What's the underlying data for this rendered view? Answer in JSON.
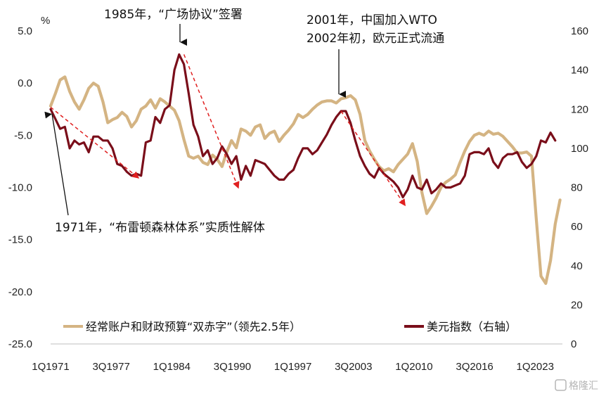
{
  "chart_data": {
    "type": "line",
    "title": "",
    "y_left_unit": "%",
    "y_left_range": [
      -25,
      5
    ],
    "y_left_ticks": [
      "5.0",
      "0.0",
      "-5.0",
      "-10.0",
      "-15.0",
      "-20.0",
      "-25.0"
    ],
    "y_right_range": [
      0,
      160
    ],
    "y_right_ticks": [
      "160",
      "140",
      "120",
      "100",
      "80",
      "60",
      "40",
      "20",
      "0"
    ],
    "x_range": [
      1971.0,
      2024.75
    ],
    "x_tick_labels": [
      "1Q1971",
      "3Q1977",
      "1Q1984",
      "3Q1990",
      "1Q1997",
      "3Q2003",
      "1Q2010",
      "3Q2016",
      "1Q2023"
    ],
    "series": [
      {
        "name": "经常账户和财政预算“双赤字”（领先2.5年）",
        "axis": "left",
        "color": "#D4B483",
        "x": [
          1971.0,
          1971.5,
          1972.0,
          1972.5,
          1973.0,
          1973.5,
          1974.0,
          1974.5,
          1975.0,
          1975.5,
          1976.0,
          1976.5,
          1977.0,
          1977.5,
          1978.0,
          1978.5,
          1979.0,
          1979.5,
          1980.0,
          1980.5,
          1981.0,
          1981.5,
          1982.0,
          1982.5,
          1983.0,
          1983.5,
          1984.0,
          1984.5,
          1985.0,
          1985.5,
          1986.0,
          1986.5,
          1987.0,
          1987.5,
          1988.0,
          1988.5,
          1989.0,
          1989.5,
          1990.0,
          1990.5,
          1991.0,
          1991.5,
          1992.0,
          1992.5,
          1993.0,
          1993.5,
          1994.0,
          1994.5,
          1995.0,
          1995.5,
          1996.0,
          1996.5,
          1997.0,
          1997.5,
          1998.0,
          1998.5,
          1999.0,
          1999.5,
          2000.0,
          2000.5,
          2001.0,
          2001.5,
          2002.0,
          2002.5,
          2003.0,
          2003.5,
          2004.0,
          2004.5,
          2005.0,
          2005.5,
          2006.0,
          2006.5,
          2007.0,
          2007.5,
          2008.0,
          2008.5,
          2009.0,
          2009.5,
          2010.0,
          2010.5,
          2011.0,
          2011.5,
          2012.0,
          2012.5,
          2013.0,
          2013.5,
          2014.0,
          2014.5,
          2015.0,
          2015.5,
          2016.0,
          2016.5,
          2017.0,
          2017.5,
          2018.0,
          2018.5,
          2019.0,
          2019.5,
          2020.0,
          2020.5,
          2021.0,
          2021.5,
          2022.0,
          2022.5,
          2023.0,
          2023.5,
          2024.0,
          2024.5
        ],
        "values": [
          -2.2,
          -1.0,
          0.3,
          0.6,
          -0.8,
          -1.8,
          -2.5,
          -1.6,
          -0.5,
          0.0,
          -0.3,
          -1.8,
          -3.8,
          -3.5,
          -3.3,
          -2.8,
          -3.2,
          -4.2,
          -3.6,
          -2.5,
          -2.2,
          -1.6,
          -2.4,
          -1.5,
          -1.8,
          -2.2,
          -2.6,
          -3.6,
          -5.4,
          -7.0,
          -7.2,
          -7.0,
          -7.6,
          -7.8,
          -6.9,
          -7.3,
          -8.0,
          -6.6,
          -5.5,
          -6.2,
          -4.4,
          -4.6,
          -5.0,
          -4.2,
          -4.0,
          -5.3,
          -4.8,
          -4.6,
          -5.6,
          -5.0,
          -4.5,
          -3.9,
          -3.0,
          -3.3,
          -3.0,
          -2.5,
          -2.1,
          -1.8,
          -1.7,
          -1.7,
          -1.9,
          -1.5,
          -1.4,
          -1.2,
          -1.6,
          -3.0,
          -5.5,
          -6.5,
          -7.3,
          -8.0,
          -8.4,
          -8.2,
          -8.5,
          -7.8,
          -7.3,
          -6.8,
          -5.8,
          -7.5,
          -10.5,
          -12.5,
          -11.8,
          -11.0,
          -10.0,
          -9.5,
          -9.2,
          -8.8,
          -7.6,
          -6.5,
          -5.6,
          -5.0,
          -4.8,
          -5.0,
          -4.6,
          -4.9,
          -4.8,
          -5.1,
          -5.6,
          -6.1,
          -6.7,
          -6.7,
          -6.6,
          -7.0,
          -13.0,
          -18.5,
          -19.2,
          -17.0,
          -13.5,
          -11.2
        ]
      },
      {
        "name": "美元指数（右轴）",
        "axis": "right",
        "color": "#7A0E1A",
        "x": [
          1971.0,
          1971.5,
          1972.0,
          1972.5,
          1973.0,
          1973.5,
          1974.0,
          1974.5,
          1975.0,
          1975.5,
          1976.0,
          1976.5,
          1977.0,
          1977.5,
          1978.0,
          1978.5,
          1979.0,
          1979.5,
          1980.0,
          1980.5,
          1981.0,
          1981.5,
          1982.0,
          1982.5,
          1983.0,
          1983.5,
          1984.0,
          1984.5,
          1985.0,
          1985.5,
          1986.0,
          1986.5,
          1987.0,
          1987.5,
          1988.0,
          1988.5,
          1989.0,
          1989.5,
          1990.0,
          1990.5,
          1991.0,
          1991.5,
          1992.0,
          1992.5,
          1993.0,
          1993.5,
          1994.0,
          1994.5,
          1995.0,
          1995.5,
          1996.0,
          1996.5,
          1997.0,
          1997.5,
          1998.0,
          1998.5,
          1999.0,
          1999.5,
          2000.0,
          2000.5,
          2001.0,
          2001.5,
          2002.0,
          2002.5,
          2003.0,
          2003.5,
          2004.0,
          2004.5,
          2005.0,
          2005.5,
          2006.0,
          2006.5,
          2007.0,
          2007.5,
          2008.0,
          2008.5,
          2009.0,
          2009.5,
          2010.0,
          2010.5,
          2011.0,
          2011.5,
          2012.0,
          2012.5,
          2013.0,
          2013.5,
          2014.0,
          2014.5,
          2015.0,
          2015.5,
          2016.0,
          2016.5,
          2017.0,
          2017.5,
          2018.0,
          2018.5,
          2019.0,
          2019.5,
          2020.0,
          2020.5,
          2021.0,
          2021.5,
          2022.0,
          2022.5,
          2023.0,
          2023.5,
          2024.0
        ],
        "values": [
          120,
          115,
          110,
          111,
          100,
          104,
          102,
          103,
          98,
          106,
          106,
          104,
          104,
          100,
          92,
          91,
          88,
          86,
          87,
          86,
          103,
          104,
          116,
          113,
          120,
          122,
          140,
          148,
          143,
          128,
          112,
          106,
          96,
          99,
          92,
          95,
          101,
          97,
          92,
          96,
          84,
          91,
          86,
          94,
          93,
          92,
          89,
          86,
          84,
          84,
          87,
          89,
          95,
          100,
          100,
          97,
          99,
          103,
          107,
          112,
          116,
          119,
          119,
          113,
          104,
          96,
          91,
          87,
          85,
          90,
          87,
          85,
          83,
          80,
          75,
          79,
          86,
          80,
          79,
          84,
          77,
          79,
          82,
          80,
          80,
          81,
          82,
          86,
          97,
          98,
          98,
          97,
          100,
          93,
          90,
          95,
          97,
          97,
          98,
          93,
          90,
          92,
          96,
          104,
          103,
          108,
          104
        ]
      }
    ],
    "annotations": {
      "plaza": "1985年，“广场协议”签署",
      "wto1": "2001年，中国加入WTO",
      "wto2": "2002年初，欧元正式流通",
      "bw": "1971年，“布雷顿森林体系”实质性解体"
    },
    "trend_arrows": [
      {
        "from": [
          1971.0,
          121
        ],
        "to": [
          1980.2,
          85
        ]
      },
      {
        "from": [
          1985.0,
          148
        ],
        "to": [
          1990.7,
          80
        ]
      },
      {
        "from": [
          2001.5,
          119
        ],
        "to": [
          2008.2,
          71
        ]
      }
    ],
    "watermark": "格隆汇"
  }
}
